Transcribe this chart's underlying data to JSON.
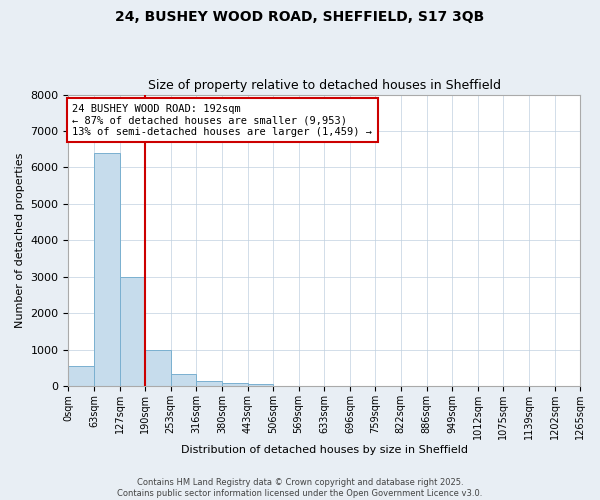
{
  "title": "24, BUSHEY WOOD ROAD, SHEFFIELD, S17 3QB",
  "subtitle": "Size of property relative to detached houses in Sheffield",
  "xlabel": "Distribution of detached houses by size in Sheffield",
  "ylabel": "Number of detached properties",
  "bar_values": [
    550,
    6400,
    3000,
    1000,
    350,
    150,
    100,
    50,
    0,
    0,
    0,
    0,
    0,
    0,
    0,
    0,
    0,
    0,
    0,
    0
  ],
  "bin_edges": [
    0,
    63,
    127,
    190,
    253,
    316,
    380,
    443,
    506,
    569,
    633,
    696,
    759,
    822,
    886,
    949,
    1012,
    1075,
    1139,
    1202,
    1265
  ],
  "bar_color": "#c6dcec",
  "bar_edge_color": "#7ab0d0",
  "vline_x": 190,
  "vline_color": "#cc0000",
  "ylim": [
    0,
    8000
  ],
  "annotation_line1": "24 BUSHEY WOOD ROAD: 192sqm",
  "annotation_line2": "← 87% of detached houses are smaller (9,953)",
  "annotation_line3": "13% of semi-detached houses are larger (1,459) →",
  "annotation_box_color": "#cc0000",
  "footer": "Contains HM Land Registry data © Crown copyright and database right 2025.\nContains public sector information licensed under the Open Government Licence v3.0.",
  "bg_color": "#e8eef4",
  "plot_bg_color": "#ffffff",
  "title_fontsize": 10,
  "subtitle_fontsize": 9,
  "tick_label_fontsize": 7,
  "ylabel_fontsize": 8,
  "xlabel_fontsize": 8,
  "footer_fontsize": 6,
  "annotation_fontsize": 7.5
}
